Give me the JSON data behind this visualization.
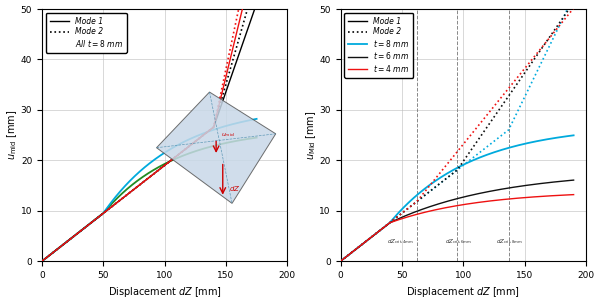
{
  "left": {
    "xlabel": "Displacement $dZ$ [mm]",
    "ylabel": "$u_{\\mathrm{mid}}$ [mm]",
    "xlim": [
      0,
      200
    ],
    "ylim": [
      0,
      50
    ],
    "yticks": [
      0.0,
      10.0,
      20.0,
      30.0,
      40.0,
      50.0
    ],
    "xticks": [
      0,
      50,
      100,
      150,
      200
    ],
    "black_mode1_color": "#000000",
    "black_mode2_color": "#000000",
    "red_color": "#ee1111",
    "cyan_color": "#00aadd",
    "green_color": "#228B22",
    "inset_facecolor": "#ccd8e8",
    "inset_edgecolor": "#7090a0",
    "arrow_color": "#cc0000"
  },
  "right": {
    "xlabel": "Displacement $dZ$ [mm]",
    "ylabel": "$u_{\\mathrm{Mid}}$ [mm]",
    "xlim": [
      0,
      200
    ],
    "ylim": [
      0,
      50
    ],
    "yticks": [
      0.0,
      10.0,
      20.0,
      30.0,
      40.0,
      50.0
    ],
    "xticks": [
      0,
      50,
      100,
      150,
      200
    ],
    "cyan_color": "#00aadd",
    "black_color": "#111111",
    "red_color": "#ee1111",
    "vlines": [
      62,
      95,
      137
    ],
    "vline_labels": [
      "$dZ_{\\mathrm{crit,4mm}}$",
      "$dZ_{\\mathrm{crit,6mm}}$",
      "$dZ_{\\mathrm{crit,8mm}}$"
    ]
  }
}
